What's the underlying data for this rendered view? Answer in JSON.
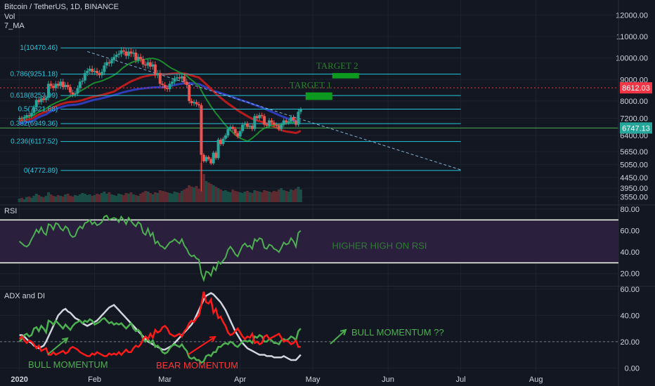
{
  "header": {
    "title": "Bitcoin / TetherUS, 1D, BINANCE",
    "line2": "Vol",
    "line3": "7_MA"
  },
  "chart_data": [
    {
      "type": "candlestick",
      "name": "Bitcoin / TetherUS",
      "ylim": [
        3300,
        12500
      ],
      "y_ticks": [
        12000,
        11000,
        10000,
        9000,
        8000,
        7200,
        6400,
        5650,
        5050,
        4450,
        3950,
        3550
      ],
      "y_tick_labels": [
        "12000.00",
        "11000.00",
        "10000.00",
        "9000.00",
        "8000.00",
        "7200.00",
        "6400.00",
        "5650.00",
        "5050.00",
        "4450.00",
        "3950.00",
        "3550.00"
      ],
      "x_tick_labels": [
        "2020",
        "Feb",
        "Mar",
        "Apr",
        "May",
        "Jun",
        "Jul",
        "Aug"
      ],
      "x_ticks_day": [
        0,
        31,
        60,
        91,
        121,
        152,
        182,
        213
      ],
      "xlim_day": [
        -8,
        247
      ],
      "price_labels": [
        {
          "value": 8612.03,
          "text": "8612.03",
          "color": "#f23645"
        },
        {
          "value": 6747.13,
          "text": "6747.13",
          "color": "#26a69a"
        }
      ],
      "fib_levels": [
        {
          "value": 10470.46,
          "label": "1(10470.46)"
        },
        {
          "value": 9251.18,
          "label": "0.786(9251.18)"
        },
        {
          "value": 8253.99,
          "label": "0.618(8253.99)"
        },
        {
          "value": 7621.68,
          "label": "0.5(7621.68)"
        },
        {
          "value": 6949.36,
          "label": "0.382(6949.36)"
        },
        {
          "value": 6117.52,
          "label": "0.236(6117.52)"
        },
        {
          "value": 4772.89,
          "label": "0(4772.89)"
        }
      ],
      "fib_day_range": [
        17,
        182
      ],
      "trendline": {
        "from": {
          "day": 28,
          "value": 10300
        },
        "to": {
          "day": 182,
          "value": 4800
        }
      },
      "horizontal_line": {
        "value": 6747.13,
        "color": "#4caf50"
      },
      "red_dotted_line": {
        "value": 8612.03
      },
      "targets": [
        {
          "label": "TARGET 1",
          "low": 8050,
          "high": 8400,
          "day_from": 118,
          "day_to": 129
        },
        {
          "label": "TARGET 2",
          "low": 9050,
          "high": 9300,
          "day_from": 129,
          "day_to": 140
        }
      ],
      "closes": [
        7200,
        7180,
        7250,
        7340,
        7300,
        7450,
        7700,
        8050,
        7950,
        8120,
        8050,
        8150,
        8800,
        8700,
        8600,
        8800,
        8700,
        8900,
        8650,
        8750,
        8650,
        8400,
        8300,
        8350,
        8600,
        8900,
        8950,
        9300,
        9400,
        9500,
        9350,
        9400,
        9300,
        9200,
        9350,
        9650,
        9800,
        9750,
        9900,
        10050,
        10150,
        10200,
        10350,
        10300,
        10100,
        10300,
        10200,
        10250,
        9900,
        10050,
        9950,
        9700,
        9650,
        9800,
        9600,
        9700,
        9200,
        9300,
        8800,
        8750,
        8600,
        8550,
        8800,
        8900,
        9050,
        9100,
        9050,
        9150,
        8900,
        8750,
        8000,
        7900,
        7950,
        7850,
        7800,
        5500,
        5200,
        5400,
        5300,
        5100,
        5600,
        5350,
        6200,
        6000,
        6250,
        6400,
        6700,
        6800,
        6700,
        6500,
        6350,
        6600,
        6900,
        6950,
        6800,
        6850,
        6700,
        7300,
        7200,
        7350,
        7300,
        6900,
        6850,
        7100,
        7000,
        6900,
        6850,
        6700,
        6900,
        7100,
        7000,
        7050,
        7250,
        7100,
        6900,
        7500,
        7600
      ],
      "volume_heights": [
        5,
        6,
        4,
        7,
        8,
        6,
        9,
        12,
        10,
        8,
        7,
        9,
        14,
        11,
        9,
        8,
        10,
        9,
        8,
        11,
        12,
        9,
        8,
        10,
        9,
        11,
        13,
        12,
        10,
        11,
        9,
        10,
        12,
        11,
        13,
        15,
        12,
        14,
        11,
        10,
        9,
        12,
        11,
        10,
        13,
        12,
        14,
        11,
        10,
        9,
        12,
        14,
        16,
        15,
        13,
        11,
        14,
        13,
        17,
        16,
        15,
        14,
        13,
        12,
        15,
        14,
        13,
        16,
        18,
        20,
        24,
        22,
        21,
        23,
        19,
        56,
        40,
        30,
        28,
        26,
        24,
        22,
        20,
        18,
        16,
        17,
        15,
        14,
        18,
        16,
        15,
        14,
        13,
        15,
        16,
        14,
        13,
        17,
        16,
        15,
        14,
        17,
        16,
        15,
        14,
        16,
        15,
        18,
        20,
        17,
        16,
        15,
        18,
        17,
        19,
        22,
        18
      ]
    },
    {
      "type": "line",
      "name": "RSI",
      "ylim": [
        10,
        82
      ],
      "y_ticks": [
        80,
        60,
        40,
        20
      ],
      "y_tick_labels": [
        "80.00",
        "60.00",
        "40.00",
        "20.00"
      ],
      "band": [
        30,
        70
      ],
      "annotation": "HIGHER HIGH ON RSI",
      "values": [
        50,
        48,
        46,
        45,
        47,
        52,
        56,
        61,
        58,
        63,
        58,
        56,
        66,
        65,
        61,
        67,
        66,
        62,
        60,
        64,
        62,
        56,
        54,
        55,
        61,
        64,
        62,
        67,
        68,
        70,
        66,
        68,
        65,
        66,
        68,
        73,
        74,
        70,
        71,
        72,
        71,
        68,
        73,
        70,
        66,
        72,
        69,
        66,
        64,
        68,
        66,
        58,
        56,
        62,
        55,
        58,
        48,
        50,
        46,
        45,
        43,
        46,
        49,
        50,
        52,
        50,
        48,
        52,
        46,
        43,
        38,
        36,
        37,
        34,
        33,
        20,
        14,
        22,
        21,
        18,
        26,
        23,
        31,
        29,
        32,
        35,
        42,
        45,
        42,
        38,
        36,
        41,
        46,
        48,
        45,
        46,
        43,
        52,
        50,
        53,
        52,
        44,
        43,
        47,
        46,
        43,
        42,
        40,
        44,
        49,
        47,
        48,
        53,
        50,
        45,
        58,
        60
      ]
    },
    {
      "type": "line",
      "name": "ADX and DI",
      "ylim": [
        -2,
        60
      ],
      "y_ticks": [
        60,
        40,
        20,
        0
      ],
      "y_tick_labels": [
        "60.00",
        "40.00",
        "20.00",
        "0.00"
      ],
      "annotations": [
        "BULL MOMENTUM",
        "BEAR MOMENTUM",
        "BULL MOMENTUM ??"
      ],
      "series": [
        {
          "values": [
            25,
            25,
            24,
            22,
            20,
            19,
            17,
            16,
            15,
            16,
            17,
            20,
            24,
            28,
            32,
            36,
            40,
            42,
            44,
            45,
            43,
            42,
            40,
            38,
            37,
            36,
            34,
            33,
            32,
            33,
            34,
            35,
            36,
            38,
            40,
            42,
            44,
            46,
            47,
            48,
            46,
            44,
            42,
            40,
            38,
            36,
            34,
            32,
            30,
            28,
            26,
            24,
            22,
            20,
            19,
            18,
            17,
            16,
            15,
            14,
            14,
            15,
            16,
            17,
            19,
            21,
            23,
            25,
            27,
            29,
            31,
            33,
            36,
            40,
            44,
            48,
            52,
            55,
            56,
            57,
            56,
            54,
            52,
            50,
            47,
            44,
            40,
            36,
            32,
            28,
            25,
            22,
            19,
            17,
            15,
            14,
            13,
            12,
            11,
            10,
            10,
            10,
            9,
            9,
            9,
            8,
            8,
            8,
            8,
            9,
            8,
            7,
            6,
            6,
            6,
            8,
            10
          ],
          "color": "#d1d4dc"
        },
        {
          "values": [
            20,
            22,
            25,
            26,
            24,
            25,
            30,
            31,
            28,
            32,
            30,
            27,
            36,
            35,
            33,
            36,
            34,
            32,
            30,
            33,
            31,
            29,
            32,
            34,
            35,
            36,
            34,
            36,
            35,
            37,
            36,
            33,
            34,
            35,
            37,
            38,
            36,
            34,
            35,
            33,
            34,
            33,
            34,
            32,
            30,
            32,
            34,
            30,
            28,
            29,
            27,
            22,
            20,
            22,
            19,
            21,
            16,
            17,
            15,
            12,
            11,
            12,
            15,
            17,
            18,
            17,
            16,
            18,
            15,
            13,
            8,
            7,
            8,
            6,
            6,
            4,
            5,
            9,
            10,
            9,
            12,
            12,
            16,
            16,
            18,
            19,
            18,
            20,
            19,
            17,
            16,
            18,
            20,
            21,
            20,
            21,
            19,
            24,
            23,
            25,
            24,
            20,
            20,
            22,
            21,
            19,
            19,
            18,
            21,
            22,
            21,
            22,
            24,
            23,
            21,
            28,
            30
          ],
          "color": "#4caf50"
        },
        {
          "values": [
            22,
            24,
            21,
            19,
            21,
            20,
            18,
            15,
            17,
            13,
            14,
            15,
            10,
            10,
            12,
            10,
            11,
            12,
            13,
            11,
            12,
            15,
            16,
            15,
            14,
            12,
            11,
            10,
            9,
            9,
            11,
            10,
            12,
            11,
            10,
            9,
            9,
            11,
            10,
            11,
            10,
            12,
            10,
            12,
            14,
            12,
            12,
            15,
            17,
            16,
            18,
            22,
            24,
            22,
            26,
            23,
            29,
            27,
            28,
            31,
            32,
            30,
            26,
            25,
            24,
            25,
            26,
            24,
            28,
            30,
            34,
            36,
            35,
            38,
            40,
            48,
            58,
            50,
            49,
            52,
            42,
            45,
            38,
            39,
            35,
            32,
            27,
            25,
            26,
            28,
            30,
            27,
            24,
            22,
            24,
            23,
            26,
            19,
            20,
            18,
            19,
            24,
            25,
            22,
            23,
            24,
            25,
            26,
            23,
            20,
            21,
            20,
            18,
            19,
            21,
            16,
            16
          ],
          "color": "#ff1a1a"
        }
      ]
    }
  ]
}
